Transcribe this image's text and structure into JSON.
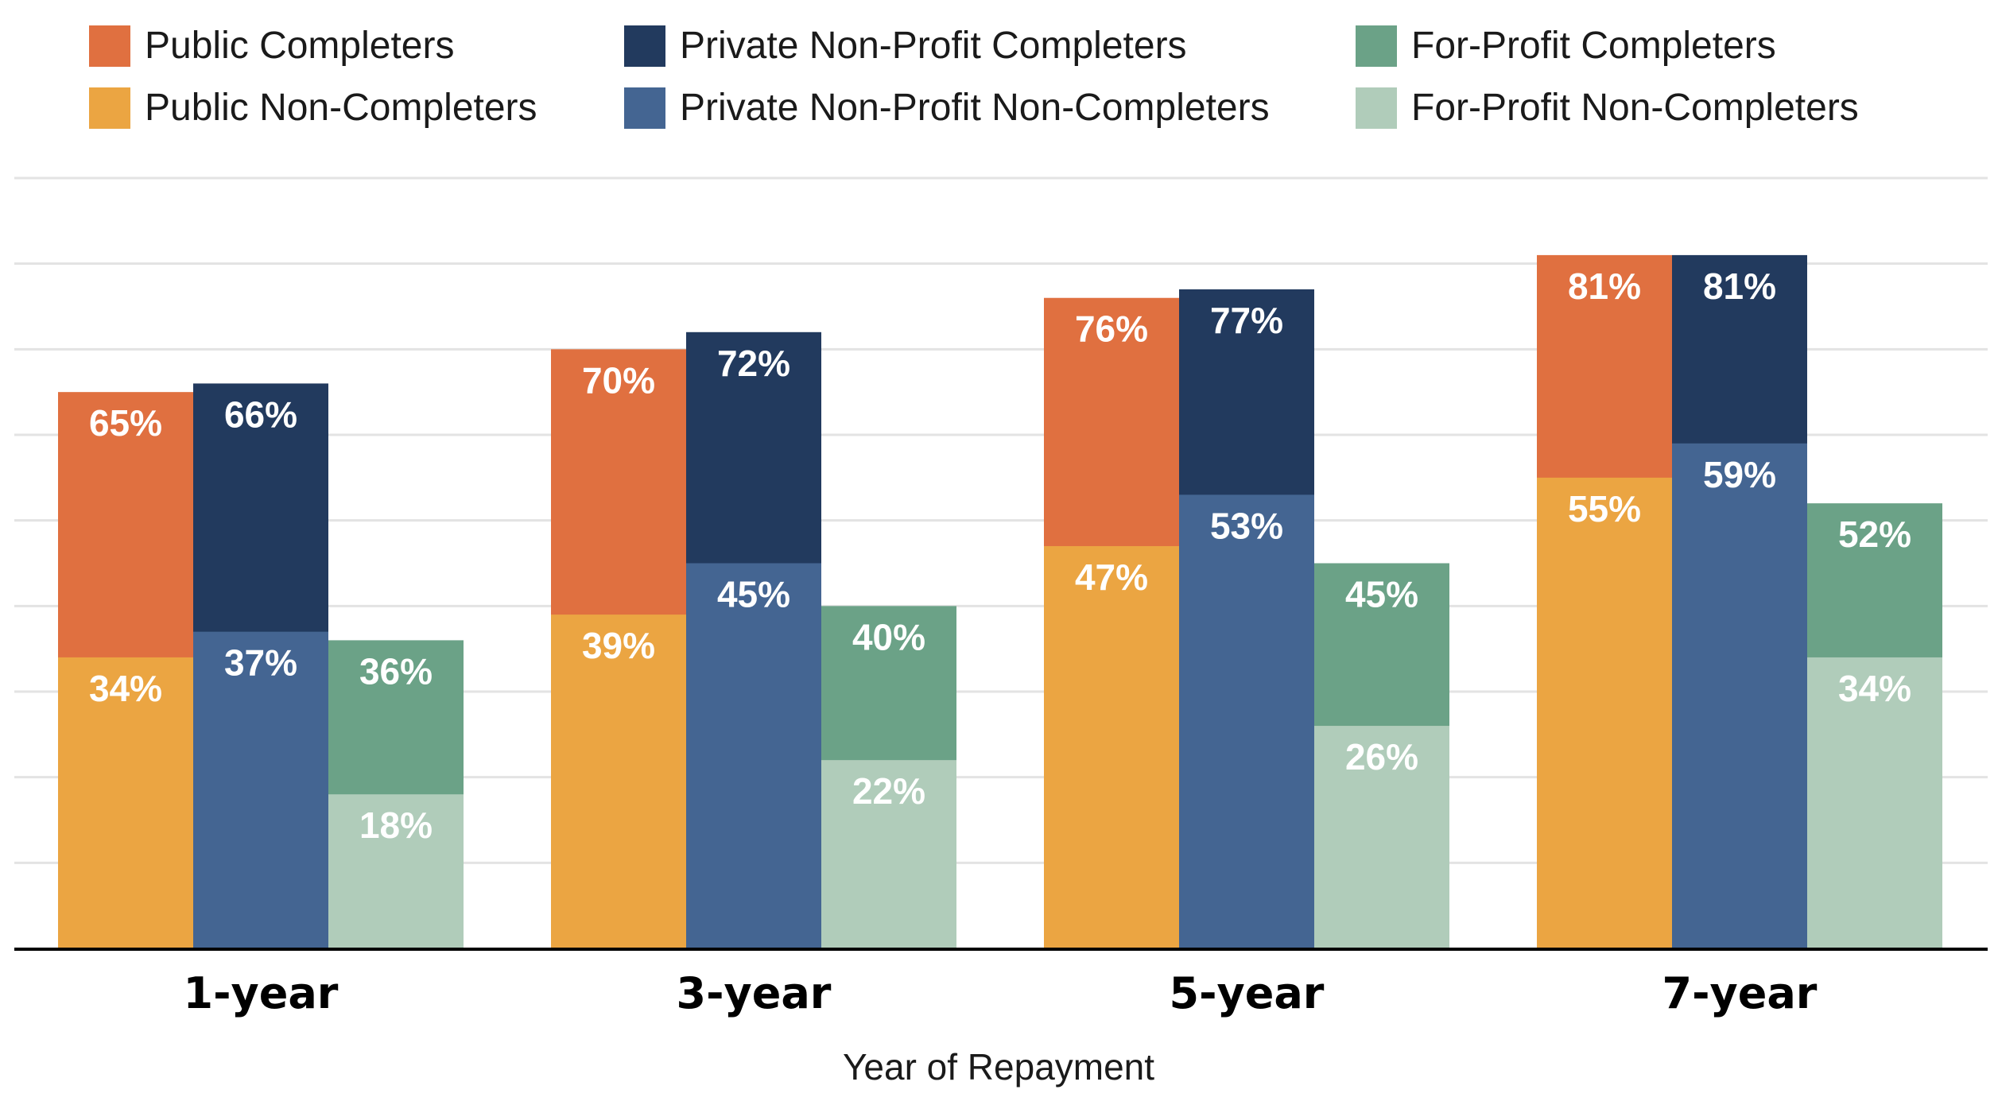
{
  "chart_data": {
    "type": "bar",
    "stacked_overlay": true,
    "title": "",
    "xlabel": "Year of Repayment",
    "ylabel": "",
    "ylim": [
      0,
      90
    ],
    "grid": true,
    "y_ticks_shown": false,
    "legend_placement": "top",
    "categories": [
      "1-year",
      "3-year",
      "5-year",
      "7-year"
    ],
    "series": [
      {
        "name": "Public Completers",
        "color": "#E07040",
        "values": [
          65,
          70,
          76,
          81
        ]
      },
      {
        "name": "Public Non-Completers",
        "color": "#EBA542",
        "values": [
          34,
          39,
          47,
          55
        ]
      },
      {
        "name": "Private Non-Profit Completers",
        "color": "#223A5E",
        "values": [
          66,
          72,
          77,
          81
        ]
      },
      {
        "name": "Private Non-Profit Non-Completers",
        "color": "#446592",
        "values": [
          37,
          45,
          53,
          59
        ]
      },
      {
        "name": "For-Profit Completers",
        "color": "#6BA287",
        "values": [
          36,
          40,
          45,
          52
        ]
      },
      {
        "name": "For-Profit Non-Completers",
        "color": "#B0CCBA",
        "values": [
          18,
          22,
          26,
          34
        ]
      }
    ],
    "groups": [
      {
        "sector": "Public",
        "completers": "Public Completers",
        "non_completers": "Public Non-Completers"
      },
      {
        "sector": "Private Non-Profit",
        "completers": "Private Non-Profit Completers",
        "non_completers": "Private Non-Profit Non-Completers"
      },
      {
        "sector": "For-Profit",
        "completers": "For-Profit Completers",
        "non_completers": "For-Profit Non-Completers"
      }
    ],
    "data_label_suffix": "%"
  }
}
